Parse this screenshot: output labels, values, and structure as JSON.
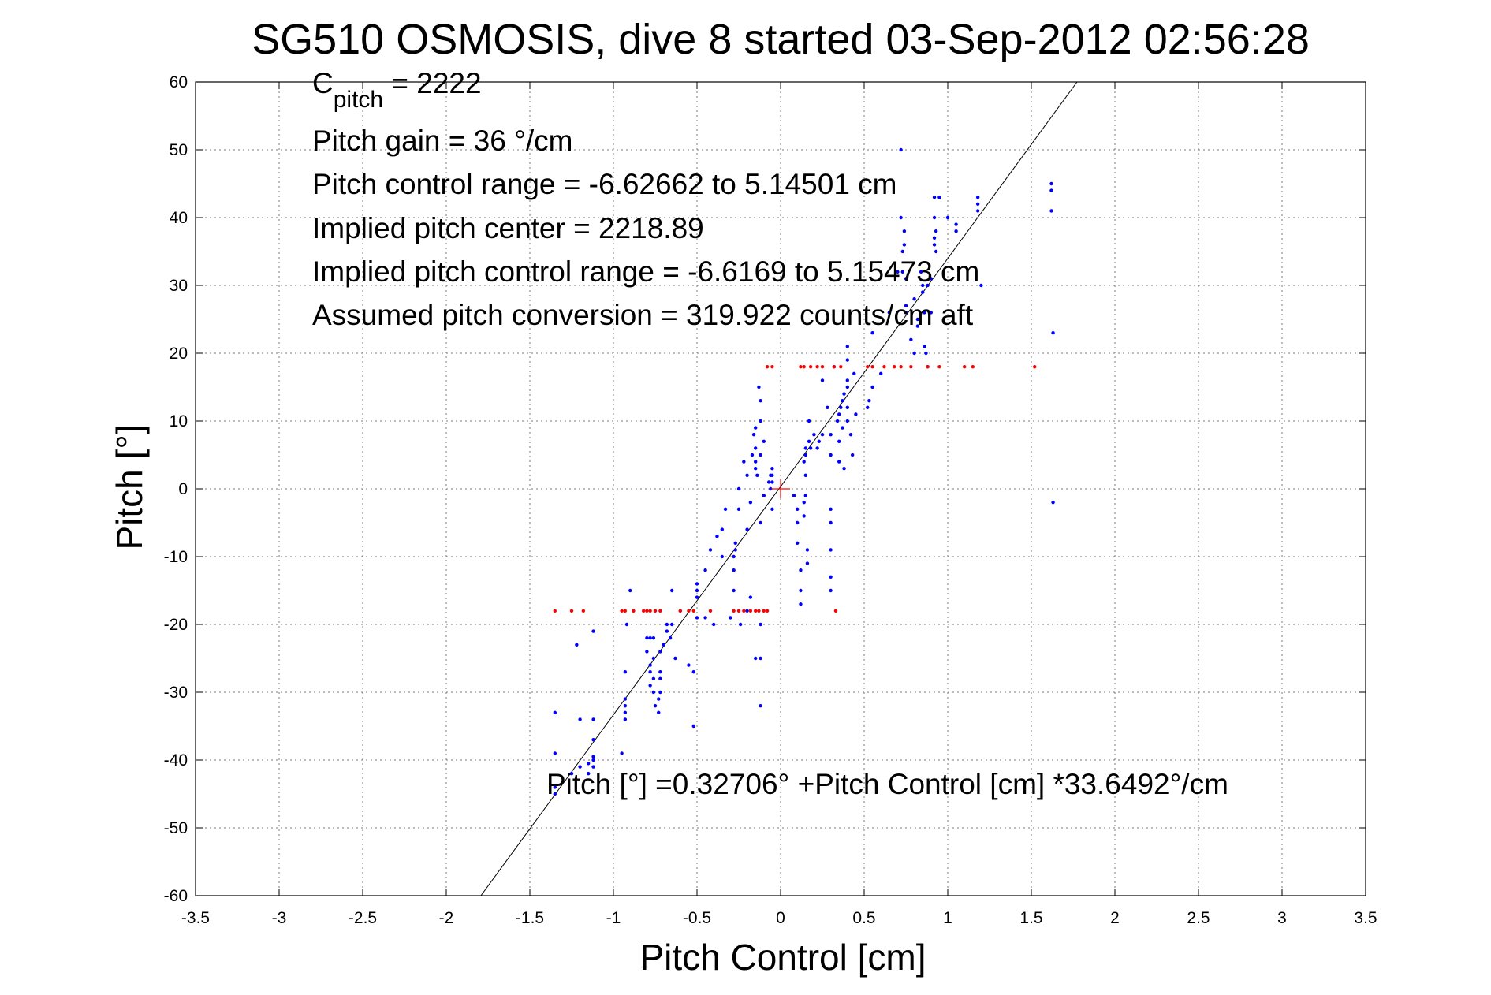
{
  "chart_data": {
    "type": "scatter",
    "title": "SG510 OSMOSIS, dive 8 started 03-Sep-2012 02:56:28",
    "xlabel": "Pitch Control [cm]",
    "ylabel": "Pitch [°]",
    "xlim": [
      -3.5,
      3.5
    ],
    "ylim": [
      -60,
      60
    ],
    "xticks": [
      -3.5,
      -3,
      -2.5,
      -2,
      -1.5,
      -1,
      -0.5,
      0,
      0.5,
      1,
      1.5,
      2,
      2.5,
      3,
      3.5
    ],
    "yticks": [
      -60,
      -50,
      -40,
      -30,
      -20,
      -10,
      0,
      10,
      20,
      30,
      40,
      50,
      60
    ],
    "grid": true,
    "annotations": {
      "c_pitch_symbol": "C",
      "c_pitch_subscript": "pitch",
      "c_pitch_value": " = 2222",
      "lines": [
        "Pitch gain = 36 °/cm",
        "Pitch control range = -6.62662 to 5.14501 cm",
        "Implied pitch center = 2218.89",
        "Implied pitch control range = -6.6169 to 5.15473 cm",
        "Assumed pitch conversion = 319.922 counts/cm aft"
      ],
      "fit_equation": "Pitch [°] =0.32706° +Pitch Control [cm] *33.6492°/cm"
    },
    "fit_line": {
      "intercept": 0.32706,
      "slope": 33.6492
    },
    "center_marker": {
      "x": 0,
      "y": 0,
      "color": "#ff0000"
    },
    "series": [
      {
        "color": "#0000ff",
        "points": [
          [
            -1.35,
            -45
          ],
          [
            -1.35,
            -44
          ],
          [
            -1.35,
            -39
          ],
          [
            -1.35,
            -33
          ],
          [
            -1.25,
            -42
          ],
          [
            -1.22,
            -23
          ],
          [
            -1.2,
            -41
          ],
          [
            -1.2,
            -34
          ],
          [
            -1.15,
            -42
          ],
          [
            -1.15,
            -40.5
          ],
          [
            -1.12,
            -41
          ],
          [
            -1.12,
            -40
          ],
          [
            -1.12,
            -39.5
          ],
          [
            -1.12,
            -37
          ],
          [
            -1.12,
            -34
          ],
          [
            -1.12,
            -21
          ],
          [
            -0.95,
            -39
          ],
          [
            -0.93,
            -34
          ],
          [
            -0.93,
            -33
          ],
          [
            -0.93,
            -32
          ],
          [
            -0.93,
            -31
          ],
          [
            -0.93,
            -27
          ],
          [
            -0.92,
            -20
          ],
          [
            -0.9,
            -15
          ],
          [
            -0.8,
            -24
          ],
          [
            -0.8,
            -22
          ],
          [
            -0.78,
            -29
          ],
          [
            -0.78,
            -27
          ],
          [
            -0.78,
            -26
          ],
          [
            -0.78,
            -22
          ],
          [
            -0.76,
            -30
          ],
          [
            -0.76,
            -28
          ],
          [
            -0.76,
            -25
          ],
          [
            -0.76,
            -22
          ],
          [
            -0.75,
            -32
          ],
          [
            -0.73,
            -31
          ],
          [
            -0.73,
            -33
          ],
          [
            -0.72,
            -30
          ],
          [
            -0.72,
            -28
          ],
          [
            -0.72,
            -27
          ],
          [
            -0.72,
            -24
          ],
          [
            -0.7,
            -23
          ],
          [
            -0.68,
            -21
          ],
          [
            -0.68,
            -20
          ],
          [
            -0.66,
            -22
          ],
          [
            -0.65,
            -20
          ],
          [
            -0.65,
            -15
          ],
          [
            -0.63,
            -25
          ],
          [
            -0.6,
            -18
          ],
          [
            -0.55,
            -26
          ],
          [
            -0.52,
            -35
          ],
          [
            -0.52,
            -27
          ],
          [
            -0.5,
            -19
          ],
          [
            -0.5,
            -16
          ],
          [
            -0.5,
            -15
          ],
          [
            -0.5,
            -14
          ],
          [
            -0.45,
            -19
          ],
          [
            -0.45,
            -12
          ],
          [
            -0.42,
            -9
          ],
          [
            -0.4,
            -20
          ],
          [
            -0.38,
            -7
          ],
          [
            -0.35,
            -10
          ],
          [
            -0.35,
            -6
          ],
          [
            -0.33,
            -3
          ],
          [
            -0.3,
            -19
          ],
          [
            -0.28,
            -15
          ],
          [
            -0.28,
            -12
          ],
          [
            -0.28,
            -10
          ],
          [
            -0.27,
            -9
          ],
          [
            -0.27,
            -8
          ],
          [
            -0.25,
            -3
          ],
          [
            -0.25,
            0
          ],
          [
            -0.24,
            -20
          ],
          [
            -0.22,
            4
          ],
          [
            -0.2,
            -18
          ],
          [
            -0.18,
            -16
          ],
          [
            -0.2,
            -6
          ],
          [
            -0.2,
            2
          ],
          [
            -0.18,
            -2
          ],
          [
            -0.17,
            5
          ],
          [
            -0.16,
            8
          ],
          [
            -0.15,
            -25
          ],
          [
            -0.15,
            6
          ],
          [
            -0.15,
            3
          ],
          [
            -0.15,
            4
          ],
          [
            -0.15,
            9
          ],
          [
            -0.14,
            2
          ],
          [
            -0.13,
            15
          ],
          [
            -0.12,
            -25
          ],
          [
            -0.12,
            -20
          ],
          [
            -0.12,
            -32
          ],
          [
            -0.12,
            -5
          ],
          [
            -0.12,
            5
          ],
          [
            -0.12,
            10
          ],
          [
            -0.12,
            13
          ],
          [
            -0.1,
            -1
          ],
          [
            -0.1,
            7
          ],
          [
            -0.07,
            1
          ],
          [
            -0.06,
            0
          ],
          [
            -0.06,
            2
          ],
          [
            -0.05,
            2
          ],
          [
            -0.05,
            3
          ],
          [
            -0.05,
            -3
          ],
          [
            -0.05,
            1
          ],
          [
            0.08,
            -1
          ],
          [
            0.1,
            -3
          ],
          [
            0.1,
            -5
          ],
          [
            0.1,
            -8
          ],
          [
            0.12,
            -12
          ],
          [
            0.12,
            -15
          ],
          [
            0.12,
            -17
          ],
          [
            0.14,
            4
          ],
          [
            0.14,
            -2
          ],
          [
            0.14,
            -4
          ],
          [
            0.15,
            5
          ],
          [
            0.15,
            6
          ],
          [
            0.15,
            -1
          ],
          [
            0.15,
            2
          ],
          [
            0.16,
            -9
          ],
          [
            0.16,
            -11
          ],
          [
            0.17,
            7
          ],
          [
            0.17,
            10
          ],
          [
            0.18,
            6
          ],
          [
            0.2,
            8
          ],
          [
            0.22,
            6
          ],
          [
            0.23,
            7
          ],
          [
            0.25,
            8
          ],
          [
            0.25,
            16
          ],
          [
            0.28,
            12
          ],
          [
            0.3,
            -3
          ],
          [
            0.3,
            -5
          ],
          [
            0.3,
            -13
          ],
          [
            0.3,
            -15
          ],
          [
            0.3,
            -9
          ],
          [
            0.3,
            5
          ],
          [
            0.3,
            8
          ],
          [
            0.32,
            18
          ],
          [
            0.34,
            10
          ],
          [
            0.35,
            4
          ],
          [
            0.35,
            7
          ],
          [
            0.35,
            11
          ],
          [
            0.36,
            12
          ],
          [
            0.37,
            9
          ],
          [
            0.37,
            13
          ],
          [
            0.38,
            14
          ],
          [
            0.38,
            3
          ],
          [
            0.4,
            10
          ],
          [
            0.4,
            21
          ],
          [
            0.4,
            19
          ],
          [
            0.4,
            16
          ],
          [
            0.4,
            12
          ],
          [
            0.4,
            15
          ],
          [
            0.42,
            8
          ],
          [
            0.43,
            5
          ],
          [
            0.44,
            17
          ],
          [
            0.45,
            11
          ],
          [
            0.52,
            12
          ],
          [
            0.53,
            13
          ],
          [
            0.55,
            15
          ],
          [
            0.55,
            23
          ],
          [
            0.6,
            17
          ],
          [
            0.65,
            26
          ],
          [
            0.7,
            32
          ],
          [
            0.72,
            50
          ],
          [
            0.72,
            40
          ],
          [
            0.73,
            32
          ],
          [
            0.73,
            35
          ],
          [
            0.74,
            36
          ],
          [
            0.74,
            38
          ],
          [
            0.75,
            31
          ],
          [
            0.75,
            26
          ],
          [
            0.75,
            27
          ],
          [
            0.78,
            22
          ],
          [
            0.8,
            28
          ],
          [
            0.8,
            20
          ],
          [
            0.82,
            25
          ],
          [
            0.82,
            24
          ],
          [
            0.84,
            32
          ],
          [
            0.85,
            29
          ],
          [
            0.85,
            30
          ],
          [
            0.86,
            26
          ],
          [
            0.86,
            21
          ],
          [
            0.87,
            20
          ],
          [
            0.88,
            18
          ],
          [
            0.88,
            30
          ],
          [
            0.9,
            31
          ],
          [
            0.9,
            26
          ],
          [
            0.92,
            43
          ],
          [
            0.92,
            40
          ],
          [
            0.92,
            37
          ],
          [
            0.92,
            36
          ],
          [
            0.93,
            35
          ],
          [
            0.93,
            38
          ],
          [
            0.95,
            43
          ],
          [
            1.0,
            40
          ],
          [
            1.05,
            39
          ],
          [
            1.05,
            38
          ],
          [
            1.18,
            41
          ],
          [
            1.18,
            42
          ],
          [
            1.18,
            43
          ],
          [
            1.2,
            30
          ],
          [
            1.62,
            45
          ],
          [
            1.62,
            44
          ],
          [
            1.62,
            41
          ],
          [
            1.63,
            23
          ],
          [
            1.63,
            -2
          ]
        ]
      },
      {
        "color": "#ff0000",
        "points": [
          [
            -1.35,
            -18
          ],
          [
            -1.25,
            -18
          ],
          [
            -1.18,
            -18
          ],
          [
            -0.95,
            -18
          ],
          [
            -0.93,
            -18
          ],
          [
            -0.88,
            -18
          ],
          [
            -0.82,
            -18
          ],
          [
            -0.8,
            -18
          ],
          [
            -0.78,
            -18
          ],
          [
            -0.75,
            -18
          ],
          [
            -0.72,
            -18
          ],
          [
            -0.6,
            -18
          ],
          [
            -0.55,
            -18
          ],
          [
            -0.52,
            -18
          ],
          [
            -0.42,
            -18
          ],
          [
            -0.28,
            -18
          ],
          [
            -0.25,
            -18
          ],
          [
            -0.22,
            -18
          ],
          [
            -0.18,
            -18
          ],
          [
            -0.15,
            -18
          ],
          [
            -0.13,
            -18
          ],
          [
            -0.1,
            -18
          ],
          [
            -0.08,
            -18
          ],
          [
            -0.08,
            18
          ],
          [
            -0.05,
            18
          ],
          [
            0.12,
            18
          ],
          [
            0.14,
            18
          ],
          [
            0.18,
            18
          ],
          [
            0.22,
            18
          ],
          [
            0.25,
            18
          ],
          [
            0.32,
            18
          ],
          [
            0.36,
            18
          ],
          [
            0.33,
            -18
          ],
          [
            0.52,
            18
          ],
          [
            0.55,
            18
          ],
          [
            0.62,
            18
          ],
          [
            0.68,
            18
          ],
          [
            0.72,
            18
          ],
          [
            0.78,
            18
          ],
          [
            0.88,
            18
          ],
          [
            0.95,
            18
          ],
          [
            1.1,
            18
          ],
          [
            1.15,
            18
          ],
          [
            1.52,
            18
          ]
        ]
      }
    ]
  }
}
